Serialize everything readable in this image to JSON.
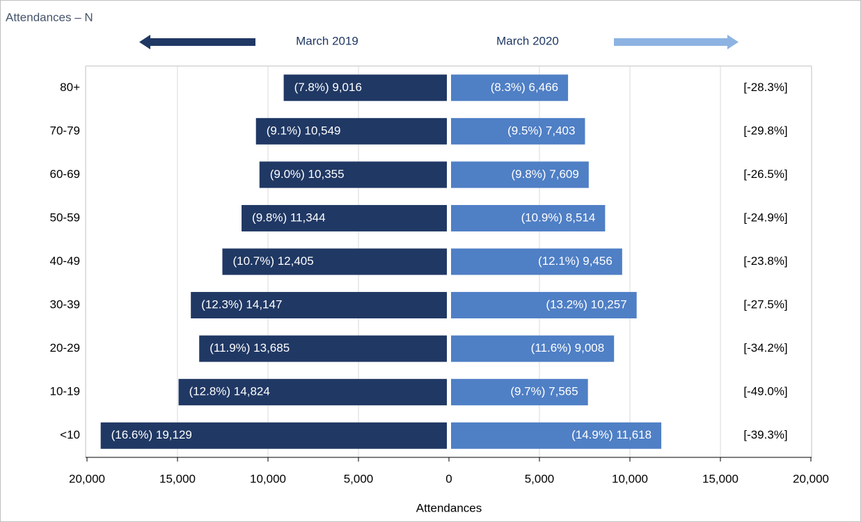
{
  "chart_data": {
    "type": "butterfly",
    "title": "Attendances – N",
    "x_label": "Attendances",
    "categories": [
      "80+",
      "70-79",
      "60-69",
      "50-59",
      "40-49",
      "30-39",
      "20-29",
      "10-19",
      "<10"
    ],
    "series": [
      {
        "name": "March 2019",
        "color": "#203864",
        "side": "left",
        "values": [
          9016,
          10549,
          10355,
          11344,
          12405,
          14147,
          13685,
          14824,
          19129
        ],
        "value_labels": [
          "(7.8%) 9,016",
          "(9.1%) 10,549",
          "(9.0%) 10,355",
          "(9.8%) 11,344",
          "(10.7%) 12,405",
          "(12.3%) 14,147",
          "(11.9%) 13,685",
          "(12.8%) 14,824",
          "(16.6%) 19,129"
        ]
      },
      {
        "name": "March 2020",
        "color": "#4f7fc5",
        "side": "right",
        "values": [
          6466,
          7403,
          7609,
          8514,
          9456,
          10257,
          9008,
          7565,
          11618
        ],
        "value_labels": [
          "(8.3%) 6,466",
          "(9.5%) 7,403",
          "(9.8%) 7,609",
          "(10.9%) 8,514",
          "(12.1%) 9,456",
          "(13.2%) 10,257",
          "(11.6%) 9,008",
          "(9.7%) 7,565",
          "(14.9%) 11,618"
        ]
      }
    ],
    "change_labels": [
      "[-28.3%]",
      "[-29.8%]",
      "[-26.5%]",
      "[-24.9%]",
      "[-23.8%]",
      "[-27.5%]",
      "[-34.2%]",
      "[-49.0%]",
      "[-39.3%]"
    ],
    "xlim": [
      -20000,
      20000
    ],
    "xticks": [
      {
        "value": -20000,
        "label": "20,000"
      },
      {
        "value": -15000,
        "label": "15,000"
      },
      {
        "value": -10000,
        "label": "10,000"
      },
      {
        "value": -5000,
        "label": "5,000"
      },
      0,
      {
        "value": 5000,
        "label": "5,000"
      },
      {
        "value": 10000,
        "label": "10,000"
      },
      {
        "value": 15000,
        "label": "15,000"
      },
      {
        "value": 20000,
        "label": "20,000"
      }
    ],
    "grid": true
  }
}
